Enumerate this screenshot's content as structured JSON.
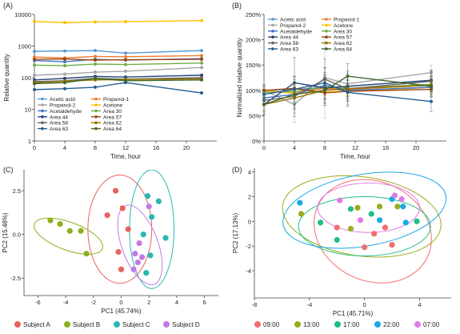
{
  "chart_data": [
    {
      "panel": "(A)",
      "type": "line",
      "xlabel": "Time, hour",
      "ylabel": "Relative quantity",
      "x": [
        0,
        4,
        8,
        12,
        22
      ],
      "xlim": [
        0,
        24
      ],
      "xticks": [
        "0",
        "4",
        "8",
        "12",
        "16",
        "20"
      ],
      "yscale": "log",
      "ylim": [
        1,
        10000
      ],
      "yticks": [
        "1",
        "10",
        "100",
        "1000",
        "10000"
      ],
      "legend_position": "bottom-left",
      "series": [
        {
          "name": "Acetic acid",
          "color": "#5b9bd5",
          "values": [
            680,
            700,
            720,
            600,
            720
          ]
        },
        {
          "name": "Propanol-1",
          "color": "#ed7d31",
          "values": [
            450,
            420,
            470,
            460,
            500
          ]
        },
        {
          "name": "Propanol-2",
          "color": "#a5a5a5",
          "values": [
            120,
            130,
            150,
            160,
            210
          ]
        },
        {
          "name": "Acetone",
          "color": "#ffc000",
          "values": [
            6000,
            5500,
            5800,
            5900,
            6400
          ]
        },
        {
          "name": "Acetaldehyde",
          "color": "#4472c4",
          "values": [
            350,
            320,
            380,
            360,
            400
          ]
        },
        {
          "name": "Area 30",
          "color": "#70ad47",
          "values": [
            250,
            240,
            270,
            260,
            290
          ]
        },
        {
          "name": "Area 44",
          "color": "#264478",
          "values": [
            85,
            95,
            110,
            105,
            120
          ]
        },
        {
          "name": "Area 57",
          "color": "#9e480e",
          "values": [
            380,
            390,
            360,
            370,
            380
          ]
        },
        {
          "name": "Area 58",
          "color": "#636363",
          "values": [
            75,
            80,
            95,
            90,
            100
          ]
        },
        {
          "name": "Area 62",
          "color": "#997300",
          "values": [
            70,
            78,
            85,
            88,
            92
          ]
        },
        {
          "name": "Area 63",
          "color": "#255e91",
          "values": [
            42,
            45,
            50,
            70,
            33
          ]
        },
        {
          "name": "Area 64",
          "color": "#43682b",
          "values": [
            65,
            70,
            95,
            80,
            85
          ]
        }
      ]
    },
    {
      "panel": "(B)",
      "type": "line",
      "xlabel": "Time, hour",
      "ylabel": "Normalized relative quantity",
      "x": [
        0,
        4,
        8,
        11,
        22
      ],
      "xlim": [
        0,
        24
      ],
      "xticks": [
        "0",
        "4",
        "8",
        "12",
        "16",
        "20"
      ],
      "ylim": [
        0,
        250
      ],
      "yticks": [
        "0%",
        "50%",
        "100%",
        "150%",
        "200%",
        "250%"
      ],
      "legend_position": "top-left",
      "series": [
        {
          "name": "Acetic acid",
          "color": "#5b9bd5",
          "values": [
            100,
            102,
            105,
            98,
            106
          ],
          "err": [
            10,
            12,
            15,
            14,
            12
          ]
        },
        {
          "name": "Propanol-1",
          "color": "#ed7d31",
          "values": [
            100,
            95,
            104,
            102,
            110
          ],
          "err": [
            8,
            10,
            12,
            12,
            14
          ]
        },
        {
          "name": "Propanol-2",
          "color": "#a5a5a5",
          "values": [
            100,
            72,
            125,
            113,
            135
          ],
          "err": [
            25,
            35,
            80,
            25,
            15
          ]
        },
        {
          "name": "Acetone",
          "color": "#ffc000",
          "values": [
            100,
            94,
            97,
            98,
            106
          ],
          "err": [
            6,
            8,
            8,
            8,
            8
          ]
        },
        {
          "name": "Acetaldehyde",
          "color": "#4472c4",
          "values": [
            85,
            92,
            110,
            100,
            106
          ],
          "err": [
            15,
            18,
            35,
            20,
            20
          ]
        },
        {
          "name": "Area 30",
          "color": "#70ad47",
          "values": [
            96,
            98,
            106,
            104,
            112
          ],
          "err": [
            10,
            12,
            25,
            15,
            15
          ]
        },
        {
          "name": "Area 44",
          "color": "#264478",
          "values": [
            72,
            115,
            105,
            108,
            120
          ],
          "err": [
            20,
            50,
            30,
            25,
            20
          ]
        },
        {
          "name": "Area 57",
          "color": "#9e480e",
          "values": [
            100,
            104,
            95,
            98,
            102
          ],
          "err": [
            8,
            10,
            10,
            10,
            10
          ]
        },
        {
          "name": "Area 58",
          "color": "#636363",
          "values": [
            80,
            88,
            122,
            103,
            118
          ],
          "err": [
            20,
            40,
            40,
            35,
            20
          ]
        },
        {
          "name": "Area 62",
          "color": "#997300",
          "values": [
            72,
            85,
            100,
            103,
            110
          ],
          "err": [
            15,
            30,
            30,
            25,
            20
          ]
        },
        {
          "name": "Area 63",
          "color": "#255e91",
          "values": [
            92,
            102,
            115,
            96,
            78
          ],
          "err": [
            20,
            25,
            30,
            25,
            20
          ]
        },
        {
          "name": "Area 64",
          "color": "#43682b",
          "values": [
            72,
            92,
            100,
            128,
            108
          ],
          "err": [
            20,
            30,
            30,
            25,
            20
          ]
        }
      ]
    },
    {
      "panel": "(C)",
      "type": "scatter",
      "xlabel": "PC1 (45.74%)",
      "ylabel": "PC2 (15.48%)",
      "xlim": [
        -7,
        7
      ],
      "xticks": [
        -6,
        -4,
        -2,
        0,
        2,
        4,
        6
      ],
      "ylim": [
        -3.5,
        3.7
      ],
      "yticks": [
        -2.5,
        0,
        2.5
      ],
      "ytick_labels": [
        "-2.5",
        "0.0",
        "2.5"
      ],
      "legend_position": "bottom",
      "series": [
        {
          "name": "Subject A",
          "color": "#e8625e",
          "points": [
            [
              -1.0,
              1.1
            ],
            [
              -0.4,
              2.5
            ],
            [
              0.1,
              1.5
            ],
            [
              -0.2,
              -1.0
            ],
            [
              0.0,
              -2.0
            ],
            [
              0.5,
              0.3
            ]
          ]
        },
        {
          "name": "Subject B",
          "color": "#8db01f",
          "points": [
            [
              -5.1,
              0.8
            ],
            [
              -4.4,
              0.6
            ],
            [
              -3.7,
              0.2
            ],
            [
              -2.9,
              0.2
            ],
            [
              -2.5,
              -1.1
            ]
          ]
        },
        {
          "name": "Subject C",
          "color": "#2bb7b0",
          "points": [
            [
              1.9,
              2.2
            ],
            [
              2.7,
              1.9
            ],
            [
              3.2,
              -0.2
            ],
            [
              2.2,
              1.0
            ],
            [
              1.6,
              0.0
            ],
            [
              2.1,
              -1.2
            ],
            [
              1.8,
              -2.2
            ]
          ]
        },
        {
          "name": "Subject D",
          "color": "#c27ae6",
          "points": [
            [
              2.0,
              1.6
            ],
            [
              1.3,
              -0.5
            ],
            [
              1.0,
              -1.1
            ],
            [
              1.5,
              -1.3
            ],
            [
              1.2,
              -1.6
            ],
            [
              0.9,
              -2.0
            ]
          ]
        }
      ],
      "ellipses": [
        {
          "series": "Subject A",
          "cx": -0.1,
          "cy": 0.3,
          "rx": 2.3,
          "ry": 3.1,
          "rot": 0
        },
        {
          "series": "Subject B",
          "cx": -3.8,
          "cy": -0.1,
          "rx": 2.6,
          "ry": 0.8,
          "rot": -20
        },
        {
          "series": "Subject C",
          "cx": 2.2,
          "cy": 0.3,
          "rx": 1.6,
          "ry": 3.4,
          "rot": 0
        },
        {
          "series": "Subject D",
          "cx": 1.35,
          "cy": -0.6,
          "rx": 1.3,
          "ry": 2.4,
          "rot": 20
        }
      ]
    },
    {
      "panel": "(D)",
      "type": "scatter",
      "xlabel": "PC1 (45.71%)",
      "ylabel": "PC2 (17.13%)",
      "xlim": [
        -8,
        6.3
      ],
      "xticks": [
        -8,
        -4,
        0,
        4
      ],
      "ylim": [
        -6.2,
        4.3
      ],
      "yticks": [
        -4,
        -2,
        0,
        2,
        4
      ],
      "legend_position": "bottom",
      "series": [
        {
          "name": "09:00",
          "color": "#f06e6e",
          "points": [
            [
              -2.0,
              -0.5
            ],
            [
              0.0,
              -2.1
            ],
            [
              1.5,
              -0.5
            ],
            [
              2.0,
              -1.9
            ],
            [
              0.7,
              -1.0
            ]
          ]
        },
        {
          "name": "13:00",
          "color": "#9cab1f",
          "points": [
            [
              -4.6,
              0.6
            ],
            [
              -1.0,
              -0.6
            ],
            [
              -0.5,
              1.1
            ],
            [
              2.4,
              1.2
            ],
            [
              1.1,
              1.2
            ]
          ]
        },
        {
          "name": "17:00",
          "color": "#1fbf83",
          "points": [
            [
              -3.2,
              -0.1
            ],
            [
              -2.0,
              -1.5
            ],
            [
              -1.0,
              1.0
            ],
            [
              0.5,
              0.6
            ],
            [
              3.8,
              0.0
            ]
          ]
        },
        {
          "name": "22:00",
          "color": "#1aa9e6",
          "points": [
            [
              -4.7,
              1.5
            ],
            [
              1.1,
              0.1
            ],
            [
              2.0,
              1.8
            ],
            [
              2.8,
              1.2
            ],
            [
              3.0,
              -0.1
            ]
          ]
        },
        {
          "name": "07:00",
          "color": "#e27ae6",
          "points": [
            [
              -1.8,
              1.7
            ],
            [
              -0.3,
              0.1
            ],
            [
              2.2,
              2.1
            ],
            [
              2.7,
              1.8
            ]
          ]
        }
      ],
      "ellipses": [
        {
          "series": "09:00",
          "cx": 0.6,
          "cy": -0.8,
          "rx": 3.6,
          "ry": 4.9,
          "rot": 65
        },
        {
          "series": "13:00",
          "cx": -0.2,
          "cy": 0.4,
          "rx": 5.8,
          "ry": 3.2,
          "rot": -8
        },
        {
          "series": "17:00",
          "cx": 0.0,
          "cy": -0.4,
          "rx": 4.8,
          "ry": 2.4,
          "rot": 0
        },
        {
          "series": "22:00",
          "cx": 0.0,
          "cy": 0.9,
          "rx": 6.0,
          "ry": 2.9,
          "rot": 10
        },
        {
          "series": "07:00",
          "cx": 0.3,
          "cy": 1.1,
          "rx": 3.7,
          "ry": 2.0,
          "rot": 0
        }
      ]
    }
  ]
}
